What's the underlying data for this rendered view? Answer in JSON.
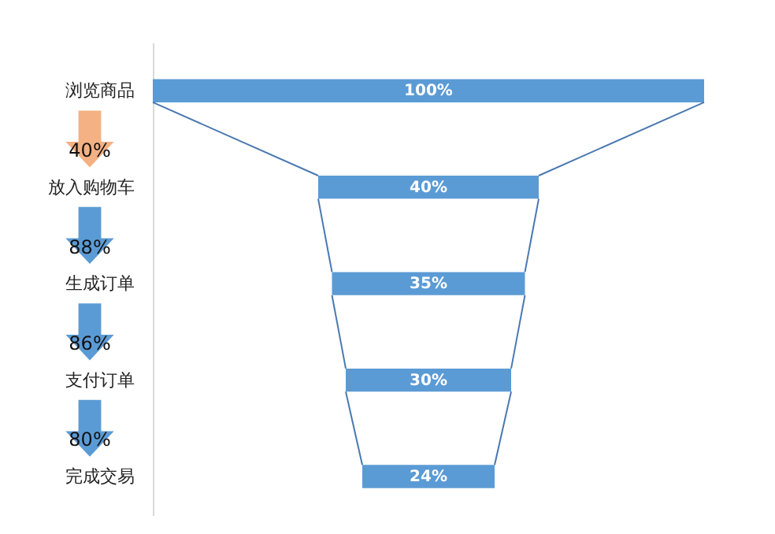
{
  "chart_data": {
    "type": "other",
    "categories": [
      "浏览商品",
      "放入购物车",
      "生成订单",
      "支付订单",
      "完成交易"
    ],
    "values": [
      100,
      40,
      35,
      30,
      24
    ],
    "value_labels": [
      "100%",
      "40%",
      "35%",
      "30%",
      "24%"
    ],
    "color": "#5b9bd5",
    "annotations": [
      "40%",
      "88%",
      "86%",
      "80%"
    ]
  }
}
